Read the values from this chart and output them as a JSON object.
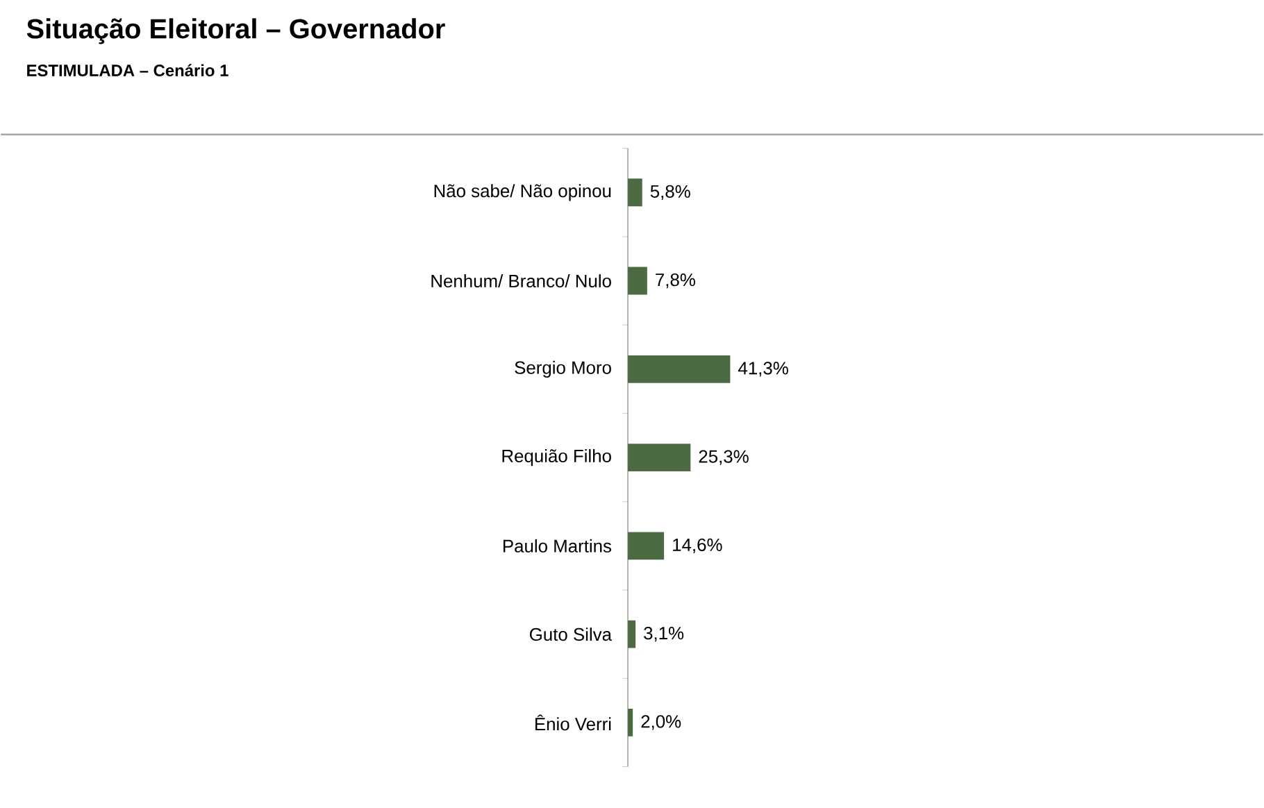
{
  "chart_data": {
    "type": "bar",
    "orientation": "horizontal",
    "title": "Situação Eleitoral – Governador",
    "subtitle": "ESTIMULADA – Cenário 1",
    "categories": [
      "Não sabe/ Não opinou",
      "Nenhum/ Branco/ Nulo",
      "Sergio Moro",
      "Requião Filho",
      "Paulo Martins",
      "Guto Silva",
      "Ênio Verri"
    ],
    "values": [
      5.8,
      7.8,
      41.3,
      25.3,
      14.6,
      3.1,
      2.0
    ],
    "value_labels": [
      "5,8%",
      "7,8%",
      "41,3%",
      "25,3%",
      "14,6%",
      "3,1%",
      "2,0%"
    ],
    "color": "#4d6b43"
  }
}
